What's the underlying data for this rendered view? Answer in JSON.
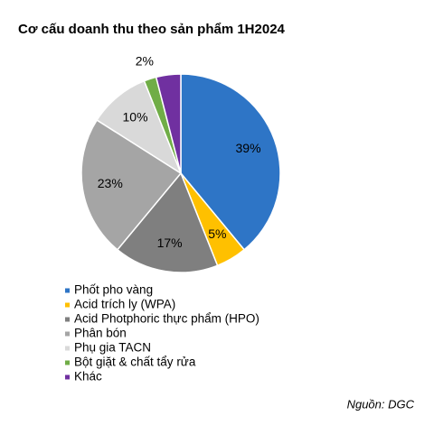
{
  "chart_data": {
    "type": "pie",
    "title": "Cơ cấu doanh thu theo sản phẩm 1H2024",
    "categories": [
      "Phốt pho vàng",
      "Acid trích ly (WPA)",
      "Acid Photphoric thực phẩm  (HPO)",
      "Phân bón",
      "Phụ gia TACN",
      "Bột giặt & chất tẩy rửa",
      "Khác"
    ],
    "values": [
      39,
      5,
      17,
      23,
      10,
      2,
      4
    ],
    "value_labels": [
      "39%",
      "5%",
      "17%",
      "23%",
      "10%",
      "2%",
      null
    ],
    "colors": [
      "#2e75c6",
      "#ffc000",
      "#7f7f7f",
      "#a5a5a5",
      "#d9d9d9",
      "#70ad47",
      "#7030a0"
    ],
    "source": "Nguồn: DGC"
  }
}
